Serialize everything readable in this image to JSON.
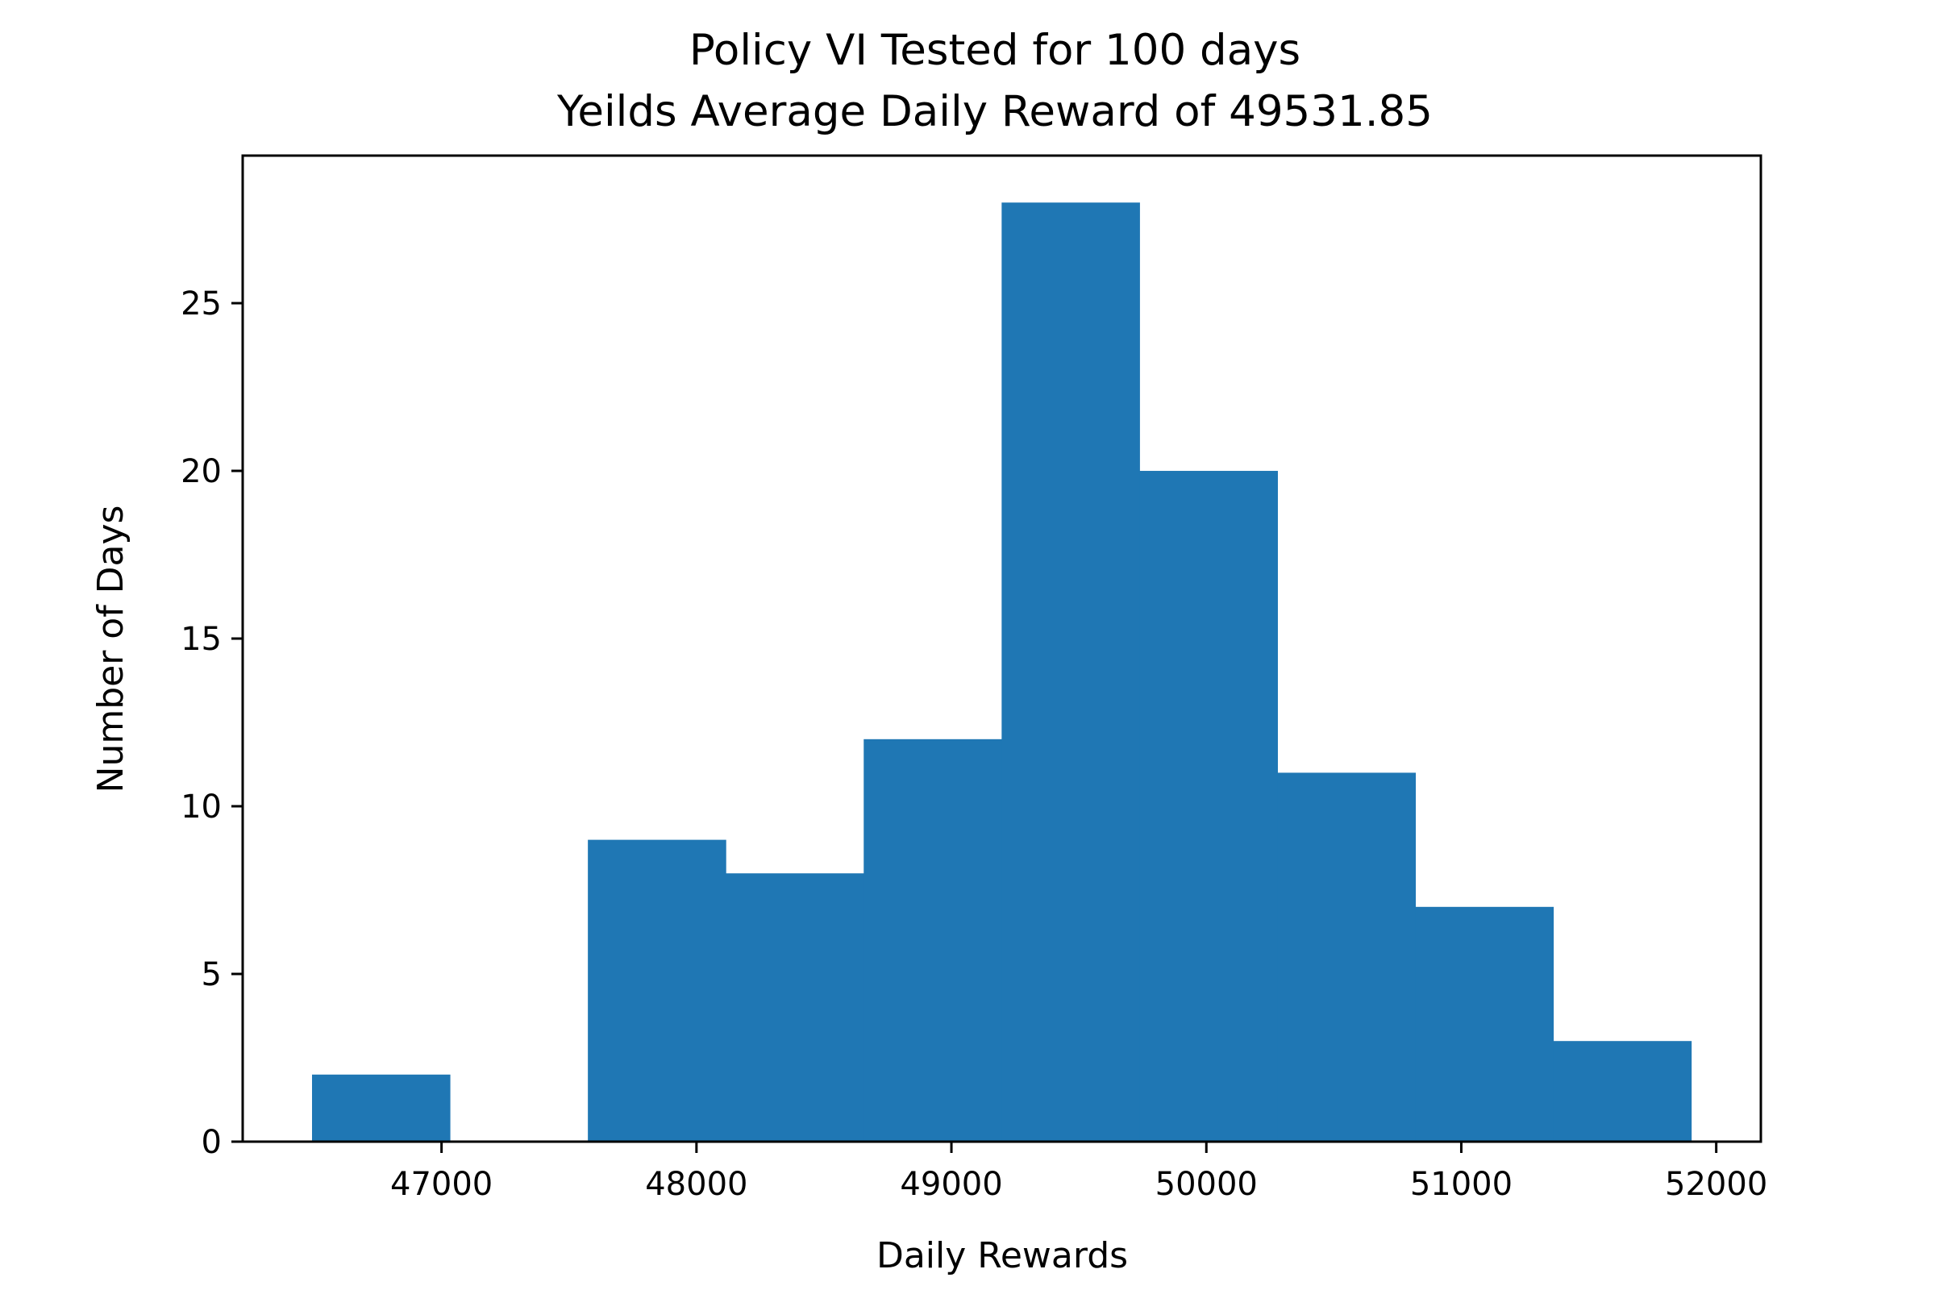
{
  "chart_data": {
    "type": "bar",
    "title": "Policy VI Tested for 100 days",
    "subtitle": "Yeilds Average Daily Reward of 49531.85",
    "xlabel": "Daily Rewards",
    "ylabel": "Number of Days",
    "bin_edges": [
      46492,
      47033,
      47574,
      48115,
      48656,
      49197,
      49738,
      50279,
      50820,
      51361,
      51902
    ],
    "counts": [
      2,
      0,
      9,
      8,
      12,
      28,
      20,
      11,
      7,
      3
    ],
    "xlim": [
      46220,
      52175
    ],
    "ylim": [
      0,
      29.4
    ],
    "xticks": [
      {
        "value": 47000,
        "label": "47000"
      },
      {
        "value": 48000,
        "label": "48000"
      },
      {
        "value": 49000,
        "label": "49000"
      },
      {
        "value": 50000,
        "label": "50000"
      },
      {
        "value": 51000,
        "label": "51000"
      },
      {
        "value": 52000,
        "label": "52000"
      }
    ],
    "yticks": [
      {
        "value": 0,
        "label": "0"
      },
      {
        "value": 5,
        "label": "5"
      },
      {
        "value": 10,
        "label": "10"
      },
      {
        "value": 15,
        "label": "15"
      },
      {
        "value": 20,
        "label": "20"
      },
      {
        "value": 25,
        "label": "25"
      }
    ],
    "grid": false,
    "bar_color": "#1f77b4"
  }
}
